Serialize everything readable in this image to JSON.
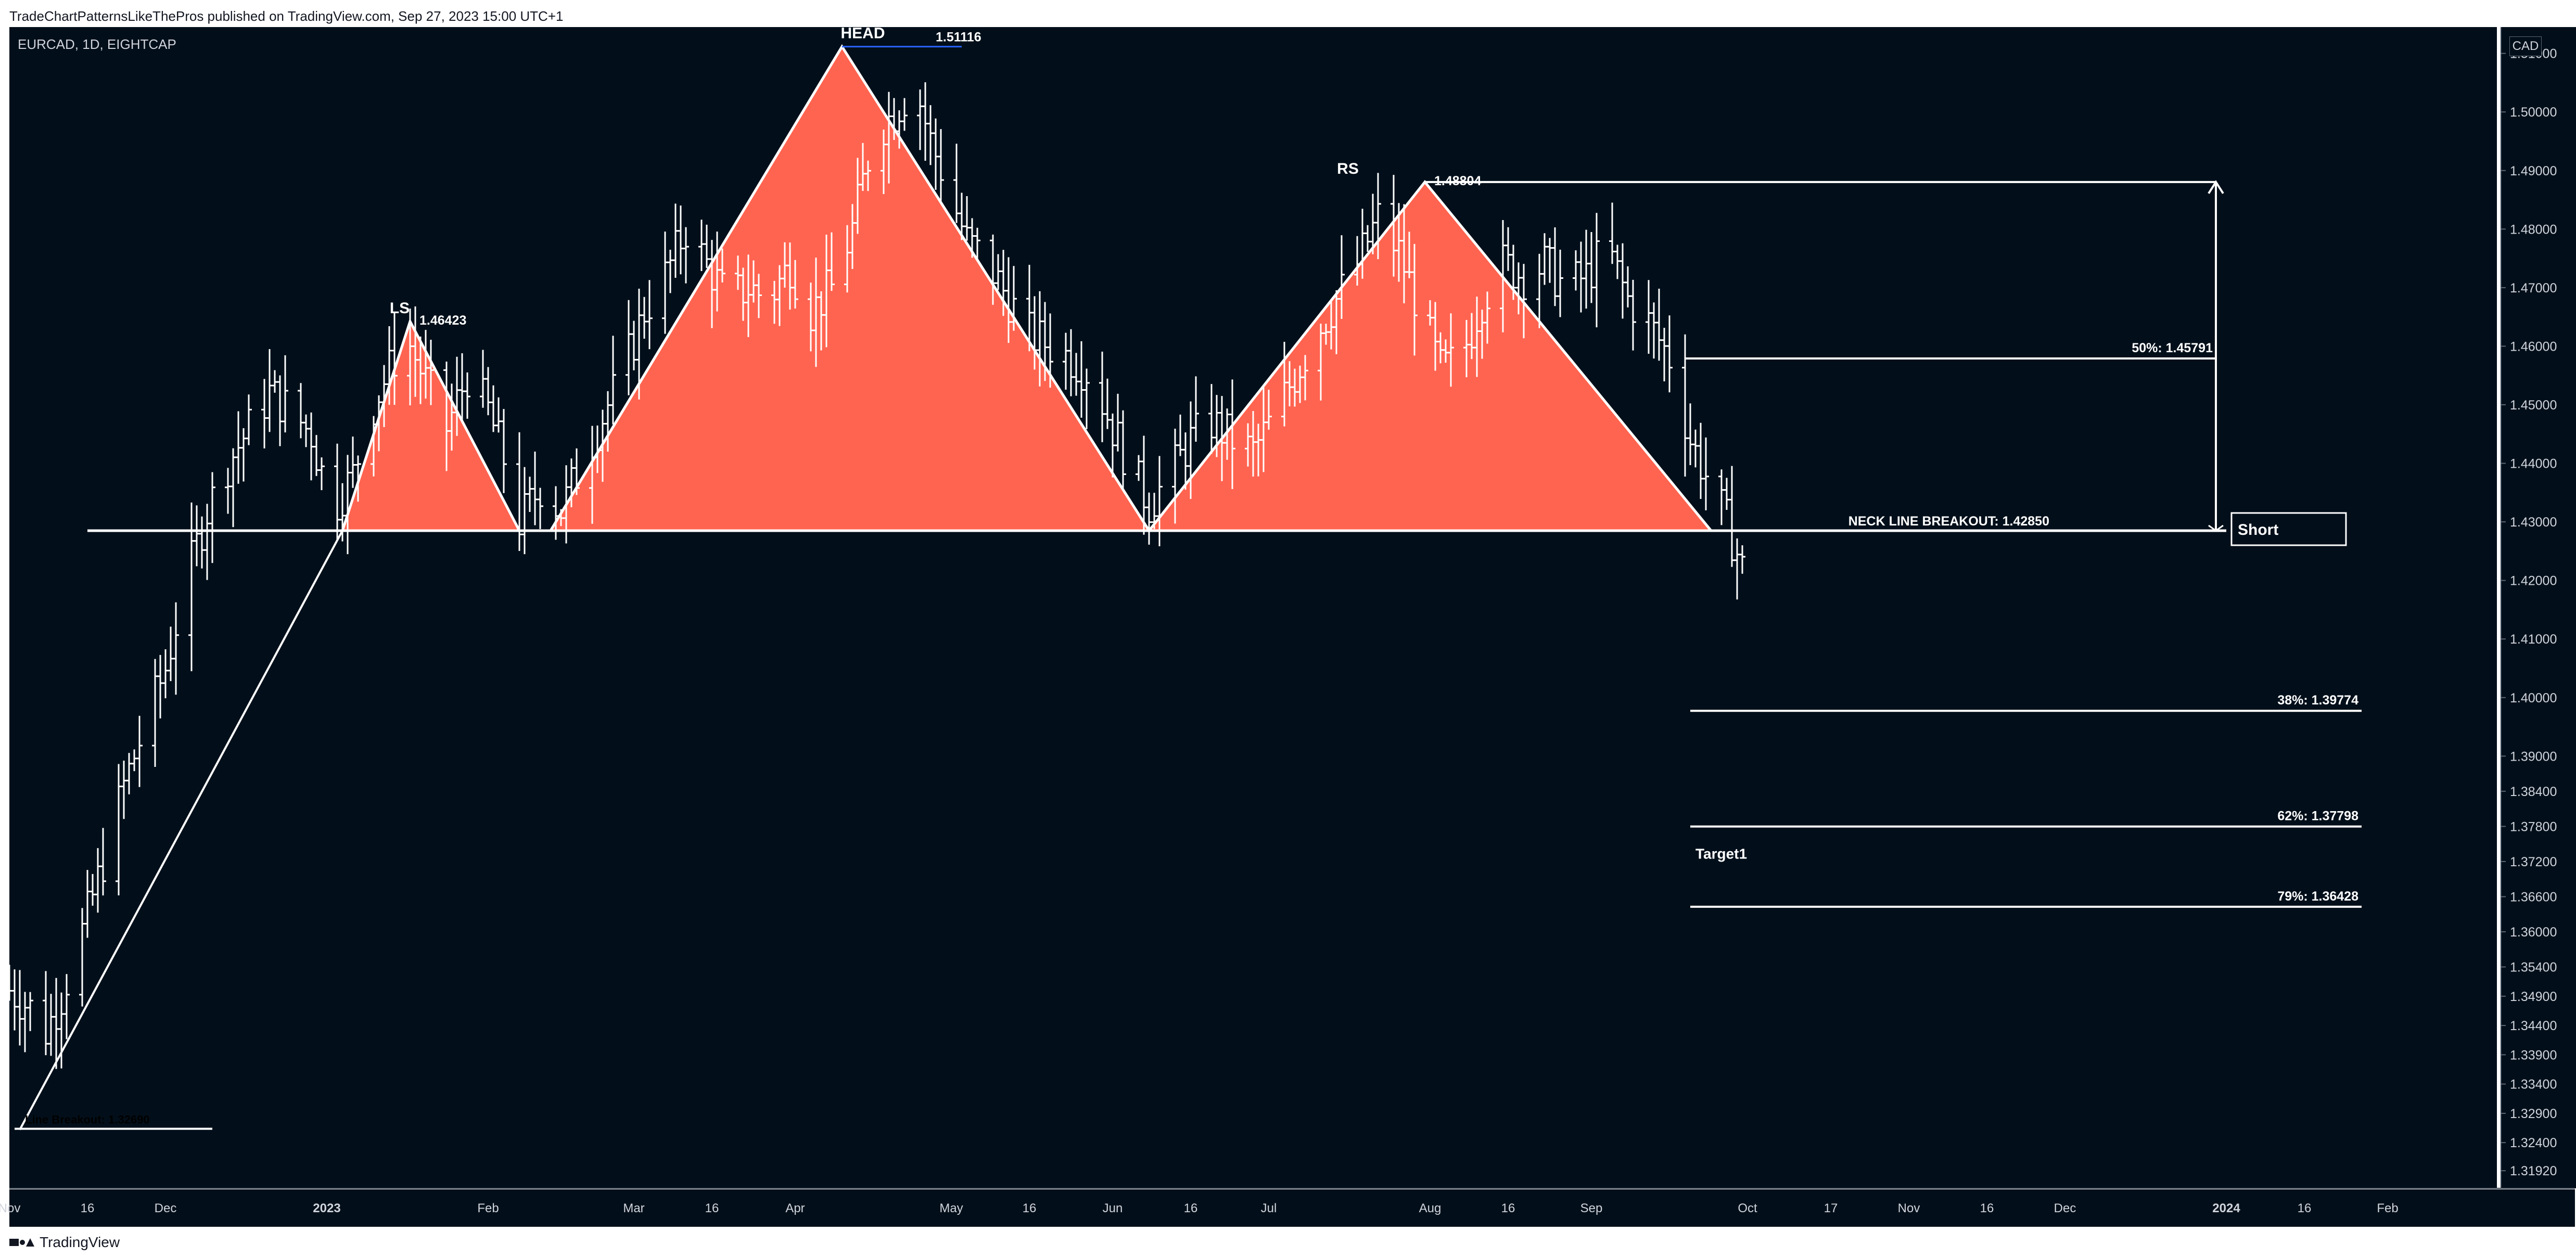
{
  "header": {
    "publisher_line": "TradeChartPatternsLikeThePros published on TradingView.com, Sep 27, 2023 15:00 UTC+1"
  },
  "chart": {
    "symbol_line": "EURCAD, 1D, EIGHTCAP",
    "currency": "CAD",
    "background_color": "#020f1a",
    "pattern_fill_color": "#ff6450",
    "line_color": "#ffffff"
  },
  "footer": {
    "brand": "TradingView",
    "logo_icon": "tradingview-logo-icon"
  },
  "chart_data": {
    "type": "bar",
    "subtype": "ohlc-daily-with-annotations",
    "title": "",
    "y_axis": {
      "side": "right",
      "ylim": [
        1.3162,
        1.5145
      ],
      "ticks": [
        1.51,
        1.5,
        1.49,
        1.48,
        1.47,
        1.46,
        1.45,
        1.44,
        1.43,
        1.42,
        1.41,
        1.4,
        1.39,
        1.384,
        1.378,
        1.372,
        1.366,
        1.36,
        1.354,
        1.349,
        1.344,
        1.339,
        1.334,
        1.329,
        1.324,
        1.3192
      ],
      "tick_labels": [
        "1.51000",
        "1.50000",
        "1.49000",
        "1.48000",
        "1.47000",
        "1.46000",
        "1.45000",
        "1.44000",
        "1.43000",
        "1.42000",
        "1.41000",
        "1.40000",
        "1.39000",
        "1.38400",
        "1.37800",
        "1.37200",
        "1.36600",
        "1.36000",
        "1.35400",
        "1.34900",
        "1.34400",
        "1.33900",
        "1.33400",
        "1.32900",
        "1.32400",
        "1.31920"
      ]
    },
    "x_axis": {
      "tick_labels": [
        "Nov",
        "16",
        "Dec",
        "2023",
        "Feb",
        "Mar",
        "16",
        "Apr",
        "May",
        "16",
        "Jun",
        "16",
        "Jul",
        "Aug",
        "16",
        "Sep",
        "Oct",
        "17",
        "Nov",
        "16",
        "Dec",
        "2024",
        "16",
        "Feb"
      ],
      "tick_days": [
        0,
        15,
        30,
        61,
        92,
        120,
        135,
        151,
        181,
        196,
        212,
        227,
        242,
        273,
        288,
        304,
        334,
        350,
        365,
        380,
        395,
        426,
        441,
        457
      ]
    },
    "neckline": {
      "label": "NECK LINE BREAKOUT: 1.42850",
      "value": 1.4285,
      "from_day": 15,
      "to_day": 426
    },
    "peaks": [
      {
        "label": "LS",
        "value_label": "1.46423",
        "day": 77,
        "value": 1.46423
      },
      {
        "label": "HEAD",
        "value_label": "1.51116",
        "day": 160,
        "value": 1.51116
      },
      {
        "label": "RS",
        "value_label": "1.48804",
        "day": 272,
        "value": 1.48804
      }
    ],
    "pattern_triangles": [
      {
        "name": "left-shoulder",
        "points": [
          [
            64,
            1.4285
          ],
          [
            77,
            1.46423
          ],
          [
            98,
            1.4285
          ]
        ]
      },
      {
        "name": "head",
        "points": [
          [
            104,
            1.4285
          ],
          [
            160,
            1.51116
          ],
          [
            219,
            1.4285
          ]
        ]
      },
      {
        "name": "right-shoulder",
        "points": [
          [
            219,
            1.4285
          ],
          [
            272,
            1.48804
          ],
          [
            327,
            1.4285
          ]
        ]
      }
    ],
    "rally_line": {
      "points": [
        [
          2,
          1.3262
        ],
        [
          64,
          1.4285
        ]
      ]
    },
    "left_breakout_label": "Line Breakout: 1.32690",
    "left_breakout_value": 1.3269,
    "fib_levels": [
      {
        "label": "50%: 1.45791",
        "value": 1.45791
      },
      {
        "label": "38%: 1.39774",
        "value": 1.39774
      },
      {
        "label": "62%: 1.37798",
        "value": 1.37798
      },
      {
        "label": "79%: 1.36428",
        "value": 1.36428
      }
    ],
    "measure_arrow": {
      "from": 1.4285,
      "to": 1.48804
    },
    "short_label": "Short",
    "target_label": "Target1",
    "ohlc_anchors": [
      [
        0,
        1.35
      ],
      [
        4,
        1.347
      ],
      [
        7,
        1.343
      ],
      [
        10,
        1.349
      ],
      [
        14,
        1.36
      ],
      [
        18,
        1.372
      ],
      [
        22,
        1.385
      ],
      [
        26,
        1.395
      ],
      [
        30,
        1.405
      ],
      [
        34,
        1.42
      ],
      [
        38,
        1.432
      ],
      [
        42,
        1.44
      ],
      [
        46,
        1.446
      ],
      [
        50,
        1.452
      ],
      [
        54,
        1.449
      ],
      [
        58,
        1.445
      ],
      [
        62,
        1.432
      ],
      [
        66,
        1.438
      ],
      [
        70,
        1.45
      ],
      [
        74,
        1.458
      ],
      [
        77,
        1.46
      ],
      [
        80,
        1.454
      ],
      [
        84,
        1.446
      ],
      [
        88,
        1.455
      ],
      [
        92,
        1.449
      ],
      [
        96,
        1.438
      ],
      [
        98,
        1.43
      ],
      [
        102,
        1.436
      ],
      [
        106,
        1.432
      ],
      [
        110,
        1.44
      ],
      [
        114,
        1.448
      ],
      [
        118,
        1.456
      ],
      [
        122,
        1.466
      ],
      [
        126,
        1.472
      ],
      [
        130,
        1.48
      ],
      [
        134,
        1.474
      ],
      [
        138,
        1.468
      ],
      [
        142,
        1.47
      ],
      [
        146,
        1.468
      ],
      [
        150,
        1.474
      ],
      [
        154,
        1.466
      ],
      [
        158,
        1.47
      ],
      [
        162,
        1.48
      ],
      [
        166,
        1.496
      ],
      [
        170,
        1.5
      ],
      [
        174,
        1.505
      ],
      [
        177,
        1.495
      ],
      [
        180,
        1.488
      ],
      [
        184,
        1.478
      ],
      [
        188,
        1.474
      ],
      [
        192,
        1.468
      ],
      [
        196,
        1.462
      ],
      [
        200,
        1.46
      ],
      [
        204,
        1.458
      ],
      [
        208,
        1.455
      ],
      [
        212,
        1.446
      ],
      [
        216,
        1.438
      ],
      [
        219,
        1.433
      ],
      [
        223,
        1.438
      ],
      [
        227,
        1.444
      ],
      [
        231,
        1.447
      ],
      [
        235,
        1.444
      ],
      [
        239,
        1.442
      ],
      [
        243,
        1.448
      ],
      [
        247,
        1.455
      ],
      [
        251,
        1.462
      ],
      [
        255,
        1.468
      ],
      [
        259,
        1.474
      ],
      [
        263,
        1.482
      ],
      [
        267,
        1.476
      ],
      [
        271,
        1.466
      ],
      [
        275,
        1.456
      ],
      [
        279,
        1.458
      ],
      [
        283,
        1.468
      ],
      [
        287,
        1.474
      ],
      [
        291,
        1.472
      ],
      [
        295,
        1.474
      ],
      [
        299,
        1.47
      ],
      [
        303,
        1.472
      ],
      [
        307,
        1.477
      ],
      [
        311,
        1.468
      ],
      [
        315,
        1.464
      ],
      [
        319,
        1.458
      ],
      [
        323,
        1.444
      ],
      [
        327,
        1.436
      ],
      [
        330,
        1.43
      ],
      [
        333,
        1.422
      ]
    ],
    "grid": false,
    "legend": "none"
  }
}
